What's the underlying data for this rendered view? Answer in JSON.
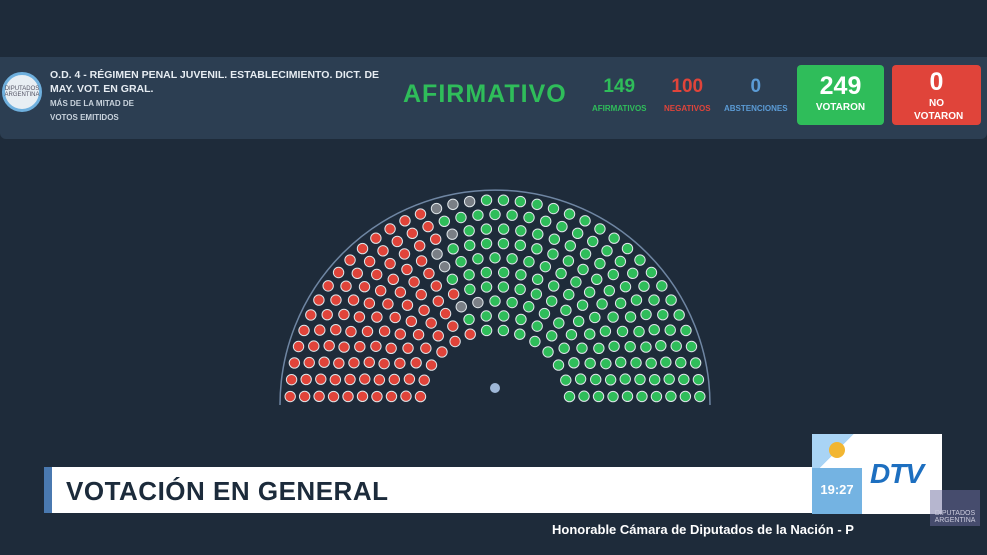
{
  "header": {
    "logo_text": "DIPUTADOS ARGENTINA",
    "title": "O.D. 4 - RÉGIMEN PENAL JUVENIL. ESTABLECIMIENTO. DICT. DE MAY. VOT. EN GRAL.",
    "subtitle_1": "MÁS DE LA MITAD DE",
    "subtitle_2": "VOTOS EMITIDOS",
    "result": "AFIRMATIVO"
  },
  "stats": {
    "afirmativos": {
      "value": "149",
      "label": "AFIRMATIVOS"
    },
    "negativos": {
      "value": "100",
      "label": "NEGATIVOS"
    },
    "abstenciones": {
      "value": "0",
      "label": "ABSTENCIONES"
    },
    "votaron": {
      "value": "249",
      "label": "VOTARON"
    },
    "no_votaron": {
      "value": "0",
      "label": "NO VOTARON"
    }
  },
  "colors": {
    "afirmativo": "#2fbd5a",
    "negativo": "#e0443a",
    "abstencion": "#5b9bd5",
    "ausente": "#7a7f86"
  },
  "hemicycle": {
    "afirmativos": 149,
    "negativos": 100,
    "ausentes": 8
  },
  "banner": {
    "text": "VOTACIÓN EN GENERAL"
  },
  "broadcast": {
    "time": "19:27",
    "channel": "DTV",
    "watermark": "DIPUTADOS ARGENTINA",
    "footer": "Honorable Cámara de Diputados de la Nación - P"
  }
}
